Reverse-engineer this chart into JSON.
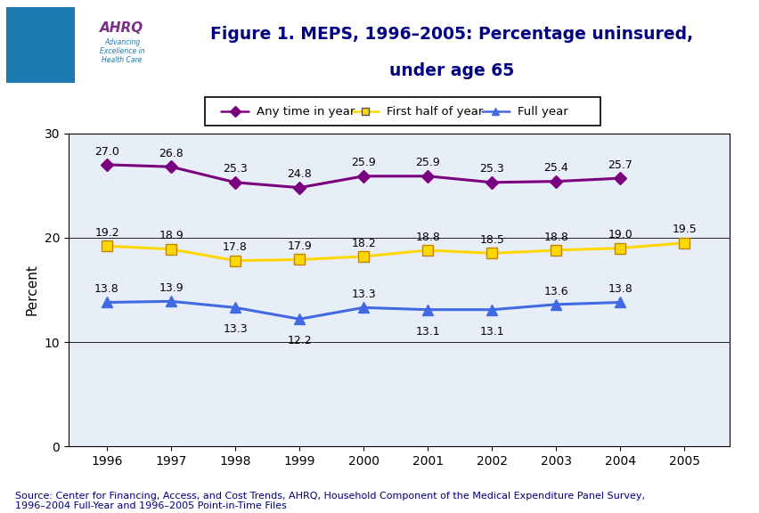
{
  "years": [
    1996,
    1997,
    1998,
    1999,
    2000,
    2001,
    2002,
    2003,
    2004,
    2005
  ],
  "any_time": [
    27.0,
    26.8,
    25.3,
    24.8,
    25.9,
    25.9,
    25.3,
    25.4,
    25.7,
    null
  ],
  "first_half": [
    19.2,
    18.9,
    17.8,
    17.9,
    18.2,
    18.8,
    18.5,
    18.8,
    19.0,
    19.5
  ],
  "full_year": [
    13.8,
    13.9,
    13.3,
    12.2,
    13.3,
    13.1,
    13.1,
    13.6,
    13.8,
    null
  ],
  "title_line1": "Figure 1. MEPS, 1996–2005: Percentage uninsured,",
  "title_line2": "under age 65",
  "ylabel": "Percent",
  "legend_labels": [
    "Any time in year",
    "First half of year",
    "Full year"
  ],
  "any_time_color": "#7B0080",
  "first_half_color": "#FFD700",
  "full_year_color": "#4169E1",
  "bg_color": "#FFFFFF",
  "plot_bg_color": "#E8EEF8",
  "title_color": "#000080",
  "source_text": "Source: Center for Financing, Access, and Cost Trends, AHRQ, Household Component of the Medical Expenditure Panel Survey,\n1996–2004 Full-Year and 1996–2005 Point-in-Time Files",
  "ylim": [
    0,
    30
  ],
  "yticks": [
    0,
    10,
    20,
    30
  ],
  "header_bar_color": "#00008B",
  "border_color": "#0000CD",
  "label_color_any": "#000080",
  "label_color_fh": "#000080",
  "label_color_fy": "#000080",
  "any_time_below": [],
  "full_year_below": [
    1998,
    1999,
    2001,
    2002
  ]
}
